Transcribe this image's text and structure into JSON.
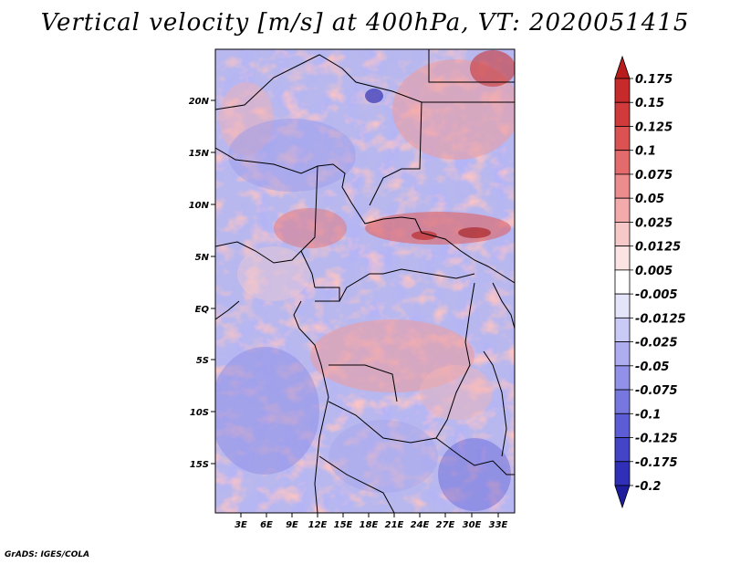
{
  "title": "Vertical velocity [m/s] at 400hPa, VT: 2020051415",
  "footer": "GrADS: IGES/COLA",
  "map": {
    "lat_ticks": [
      "20N",
      "15N",
      "10N",
      "5N",
      "EQ",
      "5S",
      "10S",
      "15S"
    ],
    "lon_ticks": [
      "3E",
      "6E",
      "9E",
      "12E",
      "15E",
      "18E",
      "21E",
      "24E",
      "27E",
      "30E",
      "33E"
    ]
  },
  "colorbar": {
    "labels": [
      "0.175",
      "0.15",
      "0.125",
      "0.1",
      "0.075",
      "0.05",
      "0.025",
      "0.0125",
      "0.005",
      "-0.005",
      "-0.0125",
      "-0.025",
      "-0.05",
      "-0.075",
      "-0.1",
      "-0.125",
      "-0.175",
      "-0.2"
    ],
    "colors": [
      "#b91c1c",
      "#c72a2a",
      "#d03a3a",
      "#dc5252",
      "#e36b6b",
      "#ec8c8c",
      "#f2aaaa",
      "#f7c8c8",
      "#fbe3e3",
      "#ffffff",
      "#e4e4fb",
      "#cacaf6",
      "#adadf0",
      "#9191ea",
      "#7777e0",
      "#5c5cd6",
      "#4444c8",
      "#2f2fb8",
      "#1d1d9e"
    ]
  }
}
